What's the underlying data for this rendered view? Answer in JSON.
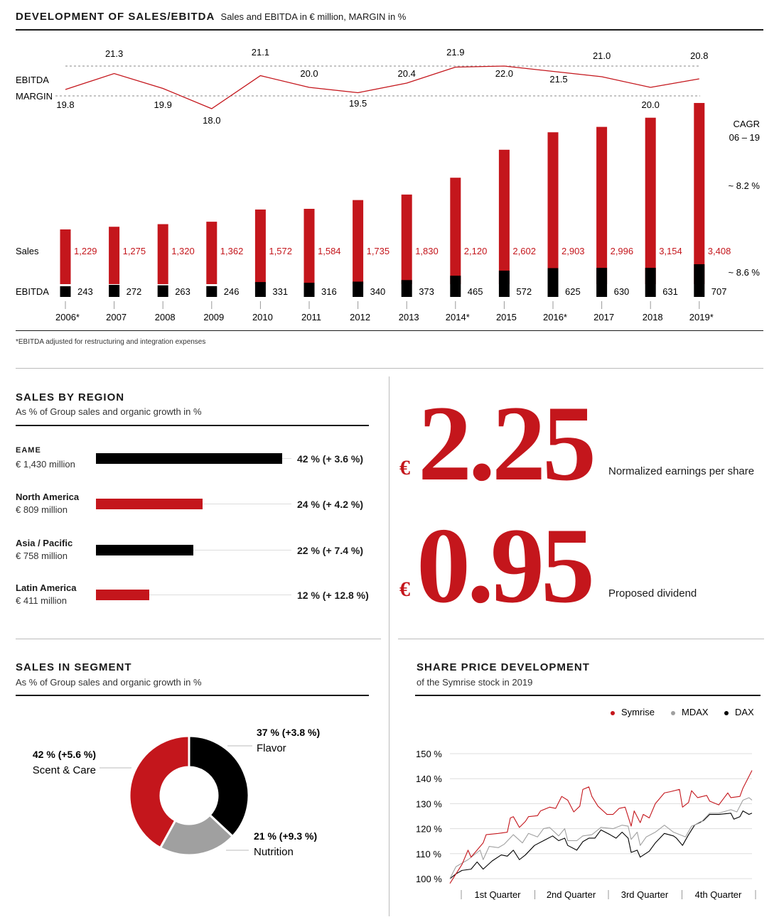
{
  "header": {
    "title": "DEVELOPMENT OF SALES/EBITDA",
    "subtitle": "Sales and EBITDA in € million, MARGIN in %"
  },
  "footnote": "*EBITDA adjusted for restructuring and integration expenses",
  "chart_data": [
    {
      "type": "bar",
      "title": "Development of Sales/EBITDA",
      "categories": [
        "2006*",
        "2007",
        "2008",
        "2009",
        "2010",
        "2011",
        "2012",
        "2013",
        "2014*",
        "2015",
        "2016*",
        "2017",
        "2018",
        "2019*"
      ],
      "series": [
        {
          "name": "Sales",
          "color": "#c4161c",
          "values": [
            1229,
            1275,
            1320,
            1362,
            1572,
            1584,
            1735,
            1830,
            2120,
            2602,
            2903,
            2996,
            3154,
            3408
          ]
        },
        {
          "name": "EBITDA",
          "color": "#000000",
          "values": [
            243,
            272,
            263,
            246,
            331,
            316,
            340,
            373,
            465,
            572,
            625,
            630,
            631,
            707
          ]
        },
        {
          "name": "EBITDA MARGIN",
          "type": "line",
          "color": "#c4161c",
          "values": [
            19.8,
            21.3,
            19.9,
            18.0,
            21.1,
            20.0,
            19.5,
            20.4,
            21.9,
            22.0,
            21.5,
            21.0,
            20.0,
            20.8
          ]
        }
      ],
      "labels": {
        "margin_line1": "EBITDA",
        "margin_line2": "MARGIN",
        "sales": "Sales",
        "ebitda": "EBITDA",
        "cagr": "CAGR",
        "cagr_period": "06 – 19",
        "cagr_sales": "~ 8.2 %",
        "cagr_ebitda": "~ 8.6 %"
      }
    },
    {
      "type": "bar",
      "title": "SALES BY REGION",
      "subtitle": "As % of Group sales and organic growth in %",
      "rows": [
        {
          "name": "EAME",
          "amount": "€ 1,430 million",
          "percent": 42,
          "label": "42 % (+ 3.6 %)",
          "color": "#000000"
        },
        {
          "name": "North America",
          "amount": "€ 809 million",
          "percent": 24,
          "label": "24 % (+ 4.2 %)",
          "color": "#c4161c"
        },
        {
          "name": "Asia / Pacific",
          "amount": "€ 758 million",
          "percent": 22,
          "label": "22 % (+ 7.4 %)",
          "color": "#000000"
        },
        {
          "name": "Latin America",
          "amount": "€ 411 million",
          "percent": 12,
          "label": "12 % (+ 12.8 %)",
          "color": "#c4161c"
        }
      ]
    },
    {
      "type": "pie",
      "title": "SALES IN SEGMENT",
      "subtitle": "As % of Group sales and organic growth in %",
      "slices": [
        {
          "name": "Flavor",
          "value": 37,
          "label": "37 % (+3.8 %)",
          "color": "#000000"
        },
        {
          "name": "Nutrition",
          "value": 21,
          "label": "21 % (+9.3 %)",
          "color": "#a0a0a0"
        },
        {
          "name": "Scent & Care",
          "value": 42,
          "label": "42 % (+5.6 %)",
          "color": "#c4161c"
        }
      ]
    },
    {
      "type": "line",
      "title": "SHARE PRICE DEVELOPMENT",
      "subtitle": "of the Symrise stock in 2019",
      "yticks": [
        "100 %",
        "110 %",
        "120 %",
        "130 %",
        "140 %",
        "150 %"
      ],
      "ylim": [
        100,
        150
      ],
      "xticks": [
        "1st Quarter",
        "2nd Quarter",
        "3rd Quarter",
        "4th Quarter"
      ],
      "series": [
        {
          "name": "Symrise",
          "color": "#c4161c",
          "points": [
            [
              0,
              98.1
            ],
            [
              0.04,
              105.7
            ],
            [
              0.06,
              111.4
            ],
            [
              0.07,
              108.6
            ],
            [
              0.11,
              114.3
            ],
            [
              0.12,
              117.6
            ],
            [
              0.16,
              118.1
            ],
            [
              0.19,
              118.6
            ],
            [
              0.2,
              124.3
            ],
            [
              0.21,
              124.8
            ],
            [
              0.23,
              120.5
            ],
            [
              0.25,
              122.9
            ],
            [
              0.26,
              124.8
            ],
            [
              0.29,
              125.2
            ],
            [
              0.3,
              127.1
            ],
            [
              0.33,
              128.6
            ],
            [
              0.35,
              128.1
            ],
            [
              0.37,
              132.9
            ],
            [
              0.39,
              131.4
            ],
            [
              0.41,
              126.7
            ],
            [
              0.43,
              129
            ],
            [
              0.44,
              135.7
            ],
            [
              0.46,
              136.7
            ],
            [
              0.47,
              132.9
            ],
            [
              0.49,
              129
            ],
            [
              0.52,
              125.7
            ],
            [
              0.54,
              125.7
            ],
            [
              0.56,
              128.1
            ],
            [
              0.58,
              128.6
            ],
            [
              0.6,
              121
            ],
            [
              0.61,
              127.1
            ],
            [
              0.63,
              122.4
            ],
            [
              0.64,
              125.7
            ],
            [
              0.66,
              124.3
            ],
            [
              0.68,
              130
            ],
            [
              0.71,
              134.3
            ],
            [
              0.73,
              134.8
            ],
            [
              0.76,
              135.7
            ],
            [
              0.77,
              128.6
            ],
            [
              0.79,
              130.5
            ],
            [
              0.8,
              135.2
            ],
            [
              0.82,
              132.4
            ],
            [
              0.85,
              133.3
            ],
            [
              0.86,
              131
            ],
            [
              0.89,
              129.5
            ],
            [
              0.92,
              134.3
            ],
            [
              0.93,
              132.4
            ],
            [
              0.96,
              132.9
            ],
            [
              0.97,
              136.2
            ],
            [
              1,
              143.3
            ]
          ]
        },
        {
          "name": "MDAX",
          "color": "#a0a0a0",
          "points": [
            [
              0,
              100
            ],
            [
              0.02,
              104.8
            ],
            [
              0.06,
              107.6
            ],
            [
              0.1,
              111.4
            ],
            [
              0.11,
              107.6
            ],
            [
              0.13,
              112.9
            ],
            [
              0.16,
              112.4
            ],
            [
              0.18,
              113.8
            ],
            [
              0.21,
              117.6
            ],
            [
              0.24,
              114.3
            ],
            [
              0.26,
              118.1
            ],
            [
              0.29,
              116.7
            ],
            [
              0.31,
              120
            ],
            [
              0.33,
              120.5
            ],
            [
              0.36,
              117.1
            ],
            [
              0.38,
              120
            ],
            [
              0.39,
              115.2
            ],
            [
              0.42,
              115.2
            ],
            [
              0.44,
              117.1
            ],
            [
              0.47,
              117.6
            ],
            [
              0.5,
              120.5
            ],
            [
              0.54,
              120
            ],
            [
              0.57,
              121.4
            ],
            [
              0.59,
              121
            ],
            [
              0.6,
              115.7
            ],
            [
              0.62,
              118.6
            ],
            [
              0.63,
              113.3
            ],
            [
              0.65,
              116.7
            ],
            [
              0.68,
              118.6
            ],
            [
              0.71,
              121.4
            ],
            [
              0.74,
              118.6
            ],
            [
              0.78,
              116.7
            ],
            [
              0.8,
              121
            ],
            [
              0.83,
              122.4
            ],
            [
              0.86,
              126.2
            ],
            [
              0.89,
              126.2
            ],
            [
              0.93,
              127.6
            ],
            [
              0.95,
              126.7
            ],
            [
              0.97,
              131.4
            ],
            [
              0.99,
              132.4
            ],
            [
              1,
              131.4
            ]
          ]
        },
        {
          "name": "DAX",
          "color": "#000000",
          "points": [
            [
              0,
              100
            ],
            [
              0.02,
              101.9
            ],
            [
              0.04,
              103.3
            ],
            [
              0.07,
              103.8
            ],
            [
              0.09,
              106.7
            ],
            [
              0.11,
              103.8
            ],
            [
              0.14,
              107.1
            ],
            [
              0.17,
              109.5
            ],
            [
              0.19,
              109
            ],
            [
              0.21,
              111.4
            ],
            [
              0.23,
              107.6
            ],
            [
              0.25,
              109.5
            ],
            [
              0.28,
              113.3
            ],
            [
              0.31,
              115.2
            ],
            [
              0.34,
              117.1
            ],
            [
              0.36,
              115.2
            ],
            [
              0.38,
              116.2
            ],
            [
              0.39,
              113.3
            ],
            [
              0.42,
              111.4
            ],
            [
              0.44,
              114.8
            ],
            [
              0.46,
              116.2
            ],
            [
              0.48,
              116.2
            ],
            [
              0.5,
              119.5
            ],
            [
              0.53,
              117.6
            ],
            [
              0.55,
              116.2
            ],
            [
              0.57,
              118.6
            ],
            [
              0.59,
              116.2
            ],
            [
              0.6,
              110.5
            ],
            [
              0.62,
              111.4
            ],
            [
              0.63,
              108.6
            ],
            [
              0.66,
              111
            ],
            [
              0.68,
              114.3
            ],
            [
              0.71,
              118.1
            ],
            [
              0.74,
              117.1
            ],
            [
              0.75,
              116.2
            ],
            [
              0.77,
              113.3
            ],
            [
              0.79,
              117.6
            ],
            [
              0.81,
              121.4
            ],
            [
              0.84,
              123.3
            ],
            [
              0.86,
              125.7
            ],
            [
              0.89,
              125.7
            ],
            [
              0.93,
              126.2
            ],
            [
              0.94,
              123.8
            ],
            [
              0.96,
              124.8
            ],
            [
              0.97,
              127.1
            ],
            [
              0.99,
              125.7
            ],
            [
              1,
              126.2
            ]
          ]
        }
      ]
    }
  ],
  "kpis": [
    {
      "currency": "€",
      "value": "2.25",
      "label": "Normalized earnings per share"
    },
    {
      "currency": "€",
      "value": "0.95",
      "label": "Proposed dividend"
    }
  ]
}
